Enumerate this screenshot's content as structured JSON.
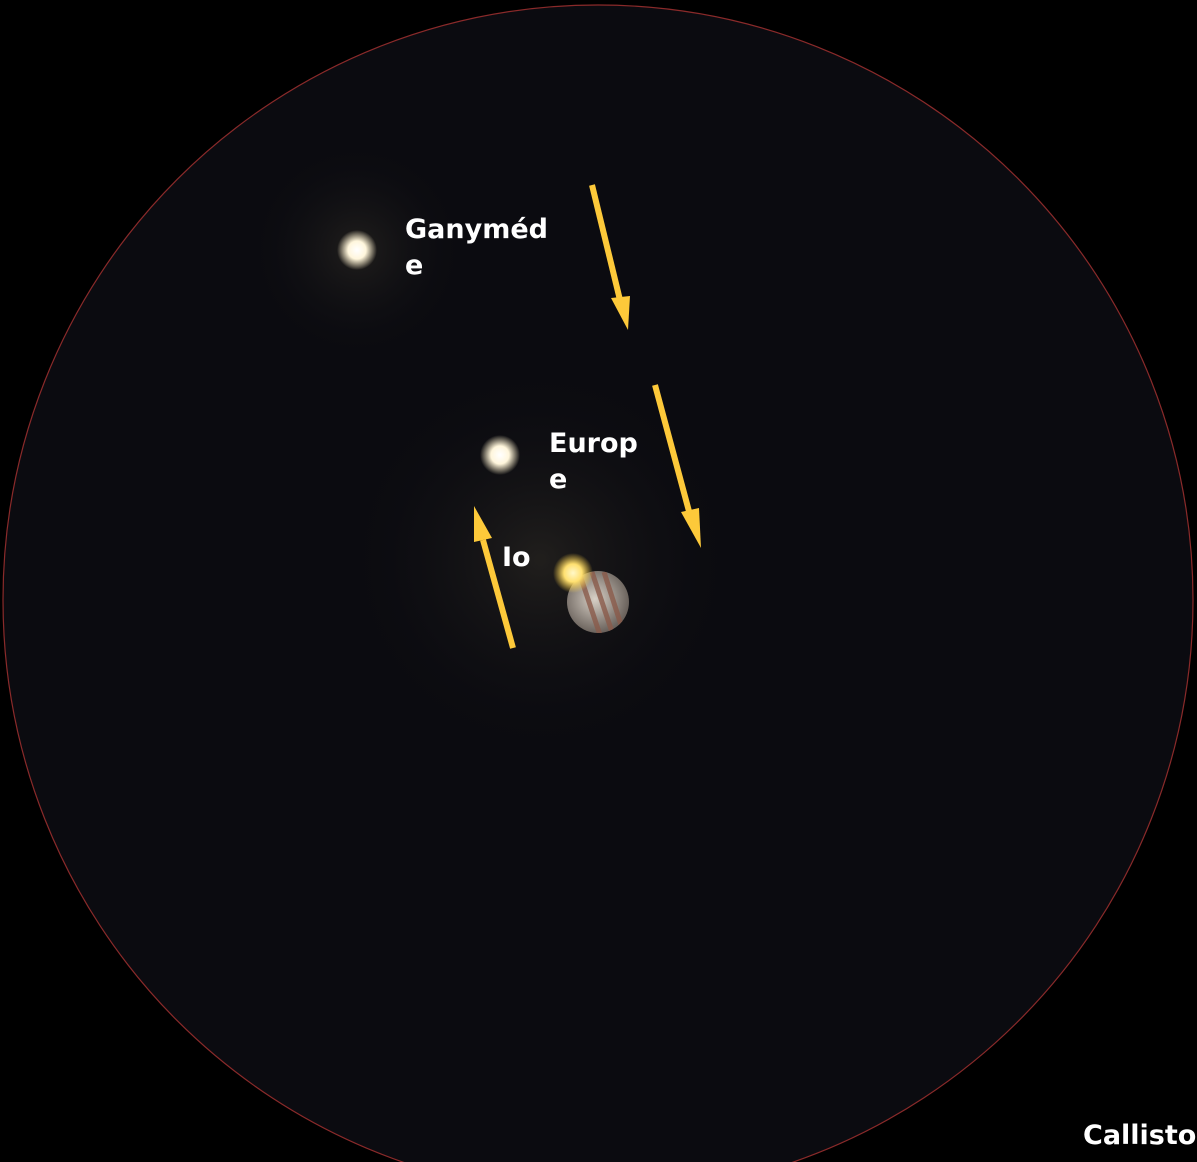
{
  "labels": {
    "ganymede": "Ganyméde",
    "europe": "Europe",
    "io": "Io",
    "callisto": "Callisto"
  }
}
